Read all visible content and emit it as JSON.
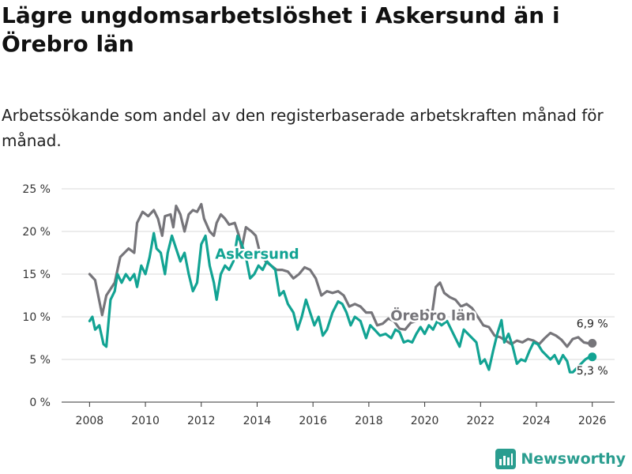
{
  "header": {
    "title": "Lägre ungdomsarbetslöshet i Askersund än i Örebro län",
    "subtitle": "Arbetssökande som andel av den registerbaserade arbetskraften månad för månad."
  },
  "brand": {
    "name": "Newsworthy",
    "icon": "newsworthy-logo-icon"
  },
  "colors": {
    "askersund": "#12a393",
    "orebro": "#76757a",
    "grid": "#d9d9d9",
    "axis": "#333333"
  },
  "chart_data": {
    "type": "line",
    "title": "Lägre ungdomsarbetslöshet i Askersund än i Örebro län",
    "xlabel": "",
    "ylabel": "",
    "xlim": [
      2007.0,
      2026.8
    ],
    "ylim": [
      0,
      25
    ],
    "x_ticks": [
      2008,
      2010,
      2012,
      2014,
      2016,
      2018,
      2020,
      2022,
      2024,
      2026
    ],
    "x_tick_labels": [
      "2008",
      "2010",
      "2012",
      "2014",
      "2016",
      "2018",
      "2020",
      "2022",
      "2024",
      "2026"
    ],
    "y_ticks": [
      0,
      5,
      10,
      15,
      20,
      25
    ],
    "y_tick_labels": [
      "0 %",
      "5 %",
      "10 %",
      "15 %",
      "20 %",
      "25 %"
    ],
    "grid": true,
    "series": [
      {
        "name": "Örebro län",
        "color": "#76757a",
        "end_label": "6,9 %",
        "points": [
          [
            2008.0,
            15.0
          ],
          [
            2008.2,
            14.3
          ],
          [
            2008.45,
            10.2
          ],
          [
            2008.6,
            12.5
          ],
          [
            2008.9,
            14.0
          ],
          [
            2009.1,
            17.0
          ],
          [
            2009.4,
            18.0
          ],
          [
            2009.6,
            17.5
          ],
          [
            2009.7,
            21.0
          ],
          [
            2009.9,
            22.3
          ],
          [
            2010.1,
            21.8
          ],
          [
            2010.3,
            22.5
          ],
          [
            2010.45,
            21.5
          ],
          [
            2010.6,
            19.5
          ],
          [
            2010.7,
            21.8
          ],
          [
            2010.9,
            22.0
          ],
          [
            2011.0,
            20.5
          ],
          [
            2011.1,
            23.0
          ],
          [
            2011.25,
            22.0
          ],
          [
            2011.4,
            20.0
          ],
          [
            2011.55,
            22.0
          ],
          [
            2011.7,
            22.5
          ],
          [
            2011.85,
            22.3
          ],
          [
            2012.0,
            23.2
          ],
          [
            2012.1,
            21.5
          ],
          [
            2012.3,
            20.0
          ],
          [
            2012.45,
            19.5
          ],
          [
            2012.55,
            21.0
          ],
          [
            2012.7,
            22.0
          ],
          [
            2012.85,
            21.5
          ],
          [
            2013.0,
            20.8
          ],
          [
            2013.2,
            21.0
          ],
          [
            2013.35,
            19.5
          ],
          [
            2013.45,
            18.0
          ],
          [
            2013.6,
            20.5
          ],
          [
            2013.8,
            20.0
          ],
          [
            2013.95,
            19.5
          ],
          [
            2014.1,
            17.5
          ],
          [
            2014.3,
            16.5
          ],
          [
            2014.5,
            16.0
          ],
          [
            2014.7,
            15.5
          ],
          [
            2014.9,
            15.5
          ],
          [
            2015.1,
            15.3
          ],
          [
            2015.3,
            14.5
          ],
          [
            2015.5,
            15.0
          ],
          [
            2015.7,
            15.8
          ],
          [
            2015.9,
            15.5
          ],
          [
            2016.1,
            14.5
          ],
          [
            2016.3,
            12.5
          ],
          [
            2016.5,
            13.0
          ],
          [
            2016.7,
            12.8
          ],
          [
            2016.9,
            13.0
          ],
          [
            2017.1,
            12.5
          ],
          [
            2017.3,
            11.2
          ],
          [
            2017.5,
            11.5
          ],
          [
            2017.7,
            11.2
          ],
          [
            2017.9,
            10.5
          ],
          [
            2018.1,
            10.5
          ],
          [
            2018.3,
            9.0
          ],
          [
            2018.5,
            9.2
          ],
          [
            2018.7,
            9.8
          ],
          [
            2018.9,
            9.5
          ],
          [
            2019.1,
            8.6
          ],
          [
            2019.3,
            8.5
          ],
          [
            2019.5,
            9.3
          ],
          [
            2019.7,
            9.5
          ],
          [
            2019.9,
            10.2
          ],
          [
            2020.1,
            10.8
          ],
          [
            2020.25,
            10.0
          ],
          [
            2020.4,
            13.5
          ],
          [
            2020.55,
            14.0
          ],
          [
            2020.7,
            12.8
          ],
          [
            2020.9,
            12.3
          ],
          [
            2021.1,
            12.0
          ],
          [
            2021.3,
            11.2
          ],
          [
            2021.5,
            11.5
          ],
          [
            2021.7,
            11.0
          ],
          [
            2021.9,
            10.0
          ],
          [
            2022.1,
            9.0
          ],
          [
            2022.3,
            8.8
          ],
          [
            2022.5,
            7.8
          ],
          [
            2022.7,
            7.6
          ],
          [
            2022.9,
            7.2
          ],
          [
            2023.1,
            6.8
          ],
          [
            2023.3,
            7.2
          ],
          [
            2023.5,
            7.0
          ],
          [
            2023.7,
            7.4
          ],
          [
            2023.9,
            7.2
          ],
          [
            2024.1,
            6.8
          ],
          [
            2024.3,
            7.5
          ],
          [
            2024.5,
            8.1
          ],
          [
            2024.7,
            7.8
          ],
          [
            2024.9,
            7.3
          ],
          [
            2025.1,
            6.5
          ],
          [
            2025.3,
            7.4
          ],
          [
            2025.5,
            7.6
          ],
          [
            2025.7,
            7.0
          ],
          [
            2025.85,
            6.9
          ],
          [
            2026.0,
            6.9
          ]
        ]
      },
      {
        "name": "Askersund",
        "color": "#12a393",
        "end_label": "5,3 %",
        "points": [
          [
            2008.0,
            9.5
          ],
          [
            2008.1,
            10.0
          ],
          [
            2008.2,
            8.5
          ],
          [
            2008.35,
            9.0
          ],
          [
            2008.5,
            6.8
          ],
          [
            2008.6,
            6.5
          ],
          [
            2008.75,
            12.0
          ],
          [
            2008.9,
            13.0
          ],
          [
            2009.0,
            15.0
          ],
          [
            2009.15,
            14.0
          ],
          [
            2009.3,
            15.0
          ],
          [
            2009.45,
            14.3
          ],
          [
            2009.6,
            15.0
          ],
          [
            2009.7,
            13.5
          ],
          [
            2009.85,
            16.0
          ],
          [
            2010.0,
            15.0
          ],
          [
            2010.15,
            17.0
          ],
          [
            2010.3,
            19.8
          ],
          [
            2010.4,
            18.0
          ],
          [
            2010.55,
            17.5
          ],
          [
            2010.7,
            15.0
          ],
          [
            2010.8,
            17.5
          ],
          [
            2010.95,
            19.5
          ],
          [
            2011.1,
            18.0
          ],
          [
            2011.25,
            16.5
          ],
          [
            2011.4,
            17.5
          ],
          [
            2011.55,
            15.0
          ],
          [
            2011.7,
            13.0
          ],
          [
            2011.85,
            14.0
          ],
          [
            2012.0,
            18.5
          ],
          [
            2012.15,
            19.5
          ],
          [
            2012.3,
            16.0
          ],
          [
            2012.45,
            14.0
          ],
          [
            2012.55,
            12.0
          ],
          [
            2012.7,
            15.0
          ],
          [
            2012.85,
            16.0
          ],
          [
            2013.0,
            15.5
          ],
          [
            2013.15,
            16.5
          ],
          [
            2013.3,
            19.5
          ],
          [
            2013.45,
            18.5
          ],
          [
            2013.6,
            17.0
          ],
          [
            2013.75,
            14.5
          ],
          [
            2013.9,
            15.0
          ],
          [
            2014.05,
            16.0
          ],
          [
            2014.2,
            15.5
          ],
          [
            2014.35,
            16.5
          ],
          [
            2014.5,
            16.0
          ],
          [
            2014.65,
            15.5
          ],
          [
            2014.8,
            12.5
          ],
          [
            2014.95,
            13.0
          ],
          [
            2015.1,
            11.5
          ],
          [
            2015.3,
            10.5
          ],
          [
            2015.45,
            8.5
          ],
          [
            2015.6,
            10.0
          ],
          [
            2015.75,
            12.0
          ],
          [
            2015.9,
            10.5
          ],
          [
            2016.05,
            9.0
          ],
          [
            2016.2,
            10.0
          ],
          [
            2016.35,
            7.8
          ],
          [
            2016.5,
            8.5
          ],
          [
            2016.7,
            10.5
          ],
          [
            2016.9,
            11.8
          ],
          [
            2017.05,
            11.5
          ],
          [
            2017.2,
            10.5
          ],
          [
            2017.35,
            9.0
          ],
          [
            2017.5,
            10.0
          ],
          [
            2017.7,
            9.5
          ],
          [
            2017.9,
            7.5
          ],
          [
            2018.05,
            9.0
          ],
          [
            2018.2,
            8.5
          ],
          [
            2018.4,
            7.8
          ],
          [
            2018.6,
            8.0
          ],
          [
            2018.8,
            7.5
          ],
          [
            2018.95,
            8.5
          ],
          [
            2019.1,
            8.2
          ],
          [
            2019.25,
            7.0
          ],
          [
            2019.4,
            7.2
          ],
          [
            2019.55,
            7.0
          ],
          [
            2019.7,
            8.0
          ],
          [
            2019.85,
            8.8
          ],
          [
            2020.0,
            8.0
          ],
          [
            2020.15,
            9.0
          ],
          [
            2020.3,
            8.5
          ],
          [
            2020.45,
            9.5
          ],
          [
            2020.6,
            9.0
          ],
          [
            2020.8,
            9.5
          ],
          [
            2020.95,
            8.5
          ],
          [
            2021.1,
            7.5
          ],
          [
            2021.25,
            6.5
          ],
          [
            2021.4,
            8.5
          ],
          [
            2021.55,
            8.0
          ],
          [
            2021.7,
            7.5
          ],
          [
            2021.85,
            7.0
          ],
          [
            2022.0,
            4.5
          ],
          [
            2022.15,
            5.0
          ],
          [
            2022.3,
            3.8
          ],
          [
            2022.45,
            6.0
          ],
          [
            2022.6,
            8.0
          ],
          [
            2022.75,
            9.6
          ],
          [
            2022.85,
            7.0
          ],
          [
            2023.0,
            8.0
          ],
          [
            2023.15,
            6.5
          ],
          [
            2023.3,
            4.5
          ],
          [
            2023.45,
            5.0
          ],
          [
            2023.6,
            4.8
          ],
          [
            2023.75,
            6.0
          ],
          [
            2023.9,
            7.0
          ],
          [
            2024.05,
            6.8
          ],
          [
            2024.2,
            6.0
          ],
          [
            2024.35,
            5.5
          ],
          [
            2024.5,
            5.0
          ],
          [
            2024.65,
            5.5
          ],
          [
            2024.8,
            4.5
          ],
          [
            2024.95,
            5.5
          ],
          [
            2025.1,
            4.8
          ],
          [
            2025.2,
            3.5
          ],
          [
            2025.3,
            3.5
          ],
          [
            2025.45,
            4.0
          ],
          [
            2025.6,
            4.5
          ],
          [
            2025.75,
            5.0
          ],
          [
            2025.9,
            5.3
          ],
          [
            2026.0,
            5.3
          ]
        ]
      }
    ],
    "annotations": [
      {
        "text": "Askersund",
        "series": "Askersund",
        "x": 2014.0,
        "y": 16.8
      },
      {
        "text": "Örebro län",
        "series": "Örebro län",
        "x": 2020.3,
        "y": 9.6
      }
    ]
  }
}
